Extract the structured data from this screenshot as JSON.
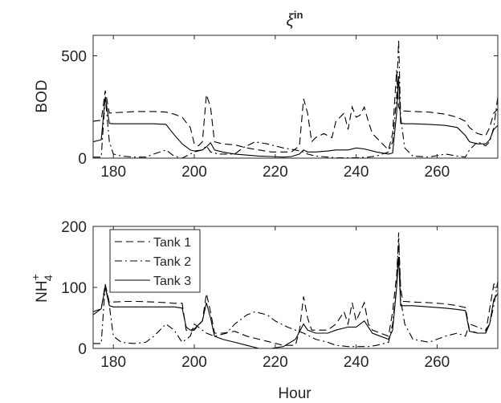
{
  "chart_data": [
    {
      "type": "line",
      "title": "ξ",
      "title_superscript": "in",
      "xlabel": "",
      "ylabel": "BOD",
      "xlim": [
        175,
        275
      ],
      "ylim": [
        0,
        600
      ],
      "xticks": [
        180,
        200,
        220,
        240,
        260
      ],
      "yticks": [
        0,
        500
      ],
      "grid": false,
      "series": [
        {
          "name": "",
          "style": "dashed",
          "x": [
            175,
            177,
            178,
            179,
            180,
            183,
            186,
            190,
            193,
            195,
            197,
            199,
            200,
            201,
            202,
            203,
            204,
            205,
            207,
            210,
            213,
            216,
            219,
            222,
            224,
            226,
            227,
            228,
            229,
            230,
            232,
            234,
            235,
            237,
            238,
            239,
            240,
            241,
            242,
            243,
            244,
            246,
            248,
            249,
            250,
            250.5,
            251,
            251.5,
            252,
            254,
            258,
            262,
            265,
            267,
            268,
            270,
            272,
            273,
            274,
            275
          ],
          "y": [
            180,
            185,
            330,
            220,
            222,
            225,
            228,
            228,
            225,
            215,
            200,
            150,
            70,
            60,
            80,
            310,
            250,
            80,
            70,
            65,
            50,
            40,
            30,
            30,
            30,
            60,
            290,
            220,
            80,
            100,
            120,
            100,
            180,
            220,
            140,
            250,
            200,
            210,
            250,
            180,
            120,
            80,
            40,
            120,
            430,
            250,
            230,
            230,
            230,
            228,
            225,
            215,
            200,
            180,
            150,
            120,
            110,
            150,
            220,
            240
          ]
        },
        {
          "name": "",
          "style": "dashdot",
          "x": [
            175,
            177,
            178,
            179,
            180,
            182,
            185,
            188,
            190,
            193,
            195,
            197,
            199,
            200,
            202,
            203,
            204,
            206,
            210,
            212,
            215,
            218,
            222,
            225,
            227,
            228,
            230,
            233,
            235,
            238,
            240,
            243,
            245,
            248,
            249,
            250,
            250.5,
            251,
            252,
            254,
            258,
            262,
            265,
            267,
            268,
            270,
            272,
            273,
            274,
            275
          ],
          "y": [
            5,
            5,
            300,
            80,
            20,
            10,
            5,
            5,
            20,
            40,
            10,
            0,
            20,
            30,
            40,
            60,
            30,
            20,
            20,
            50,
            80,
            70,
            50,
            40,
            30,
            20,
            10,
            5,
            2,
            2,
            2,
            5,
            10,
            30,
            80,
            300,
            580,
            200,
            50,
            10,
            5,
            20,
            10,
            5,
            40,
            80,
            60,
            80,
            150,
            300
          ]
        },
        {
          "name": "",
          "style": "solid",
          "x": [
            175,
            177,
            178,
            179,
            180,
            183,
            186,
            190,
            193,
            195,
            197,
            199,
            200,
            202,
            203,
            204,
            205,
            207,
            210,
            213,
            216,
            219,
            222,
            224,
            226,
            227,
            228,
            230,
            233,
            235,
            238,
            240,
            242,
            245,
            248,
            249,
            250,
            250.5,
            251,
            251.5,
            252,
            254,
            258,
            262,
            265,
            267,
            268,
            270,
            272,
            273,
            274,
            275
          ],
          "y": [
            80,
            90,
            300,
            170,
            168,
            168,
            168,
            168,
            165,
            115,
            70,
            40,
            35,
            40,
            55,
            75,
            40,
            30,
            20,
            15,
            10,
            8,
            5,
            8,
            20,
            40,
            30,
            30,
            35,
            40,
            40,
            50,
            45,
            30,
            20,
            25,
            220,
            400,
            170,
            170,
            168,
            168,
            165,
            160,
            150,
            110,
            80,
            70,
            70,
            90,
            140,
            160
          ]
        }
      ]
    },
    {
      "type": "line",
      "title": "",
      "xlabel": "Hour",
      "ylabel": "NH",
      "ylabel_superscript": "+",
      "ylabel_subscript": "4",
      "xlim": [
        175,
        275
      ],
      "ylim": [
        0,
        200
      ],
      "xticks": [
        180,
        200,
        220,
        240,
        260
      ],
      "yticks": [
        0,
        100,
        200
      ],
      "grid": false,
      "legend_position": "top-left",
      "series": [
        {
          "name": "Tank 1",
          "style": "dashed",
          "x": [
            175,
            177,
            178,
            179,
            180,
            183,
            186,
            190,
            193,
            195,
            197,
            198,
            199,
            200,
            202,
            203,
            204,
            205,
            207,
            210,
            213,
            216,
            219,
            222,
            225,
            226,
            227,
            228,
            229,
            230,
            233,
            235,
            237,
            238,
            239,
            240,
            241,
            242,
            243,
            244,
            246,
            248,
            249,
            250,
            250.5,
            251,
            251.5,
            252,
            254,
            258,
            262,
            265,
            267,
            268,
            270,
            272,
            273,
            274,
            275
          ],
          "y": [
            60,
            65,
            105,
            75,
            76,
            77,
            77,
            76,
            75,
            74,
            74,
            30,
            28,
            30,
            45,
            90,
            60,
            25,
            25,
            28,
            20,
            15,
            10,
            5,
            5,
            30,
            85,
            50,
            30,
            30,
            30,
            40,
            60,
            40,
            75,
            45,
            60,
            75,
            40,
            30,
            25,
            20,
            60,
            120,
            180,
            100,
            77,
            77,
            76,
            75,
            73,
            70,
            67,
            30,
            25,
            25,
            65,
            105,
            110
          ]
        },
        {
          "name": "Tank 2",
          "style": "dashdot",
          "x": [
            175,
            177,
            178,
            179,
            180,
            182,
            185,
            188,
            190,
            193,
            195,
            197,
            199,
            200,
            202,
            203,
            205,
            208,
            210,
            213,
            215,
            218,
            220,
            223,
            225,
            227,
            230,
            233,
            235,
            238,
            240,
            243,
            245,
            248,
            249,
            250,
            250.5,
            251,
            252,
            254,
            258,
            262,
            265,
            267,
            268,
            270,
            272,
            273,
            274,
            275
          ],
          "y": [
            8,
            8,
            105,
            70,
            20,
            10,
            8,
            10,
            20,
            40,
            30,
            10,
            20,
            40,
            30,
            25,
            20,
            25,
            40,
            55,
            60,
            55,
            45,
            35,
            30,
            25,
            15,
            10,
            5,
            3,
            3,
            3,
            5,
            10,
            40,
            100,
            190,
            80,
            40,
            15,
            10,
            20,
            25,
            20,
            40,
            35,
            30,
            40,
            70,
            110
          ]
        },
        {
          "name": "Tank 3",
          "style": "solid",
          "x": [
            175,
            177,
            178,
            179,
            180,
            183,
            186,
            190,
            193,
            195,
            197,
            198,
            199,
            200,
            202,
            203,
            204,
            205,
            207,
            210,
            213,
            216,
            219,
            222,
            225,
            227,
            228,
            230,
            233,
            235,
            238,
            240,
            242,
            244,
            246,
            248,
            249,
            250,
            250.5,
            251,
            251.5,
            252,
            254,
            258,
            262,
            265,
            267,
            268,
            270,
            272,
            273,
            274,
            275
          ],
          "y": [
            55,
            65,
            100,
            70,
            68,
            68,
            68,
            68,
            68,
            68,
            66,
            35,
            30,
            32,
            45,
            75,
            50,
            20,
            15,
            10,
            5,
            0,
            0,
            3,
            15,
            40,
            30,
            25,
            25,
            30,
            35,
            35,
            45,
            25,
            20,
            15,
            30,
            100,
            150,
            70,
            70,
            70,
            70,
            68,
            66,
            64,
            62,
            28,
            25,
            25,
            40,
            80,
            90
          ]
        }
      ]
    }
  ]
}
